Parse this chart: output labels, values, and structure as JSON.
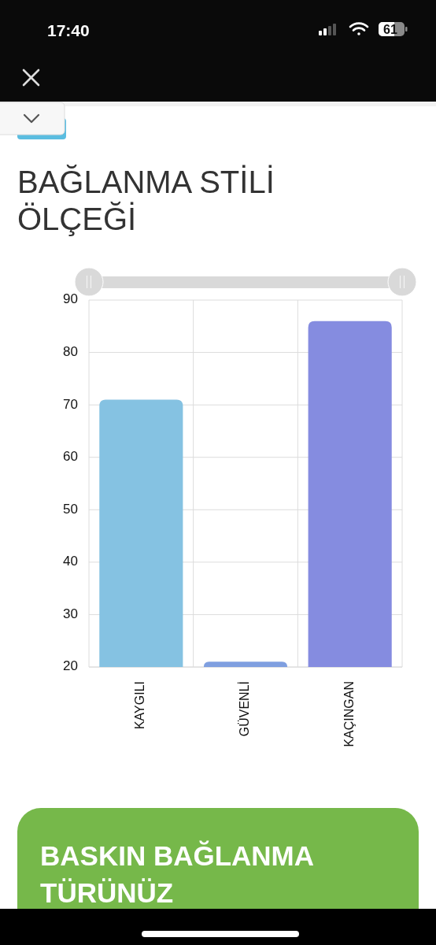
{
  "chart_data": {
    "type": "bar",
    "title": "BAĞLANMA STİLİ ÖLÇEĞİ",
    "categories": [
      "KAYGILI",
      "GÜVENLİ",
      "KAÇINGAN"
    ],
    "values": [
      71,
      21,
      86
    ],
    "colors": [
      "#85c2e2",
      "#7f9fe0",
      "#858ce0"
    ],
    "ylim": [
      20,
      90
    ],
    "yticks": [
      20,
      30,
      40,
      50,
      60,
      70,
      80,
      90
    ],
    "grid": true,
    "annotations": [
      "17:40",
      "61",
      "BASKIN BAĞLANMA TÜRÜNÜZ"
    ]
  }
}
